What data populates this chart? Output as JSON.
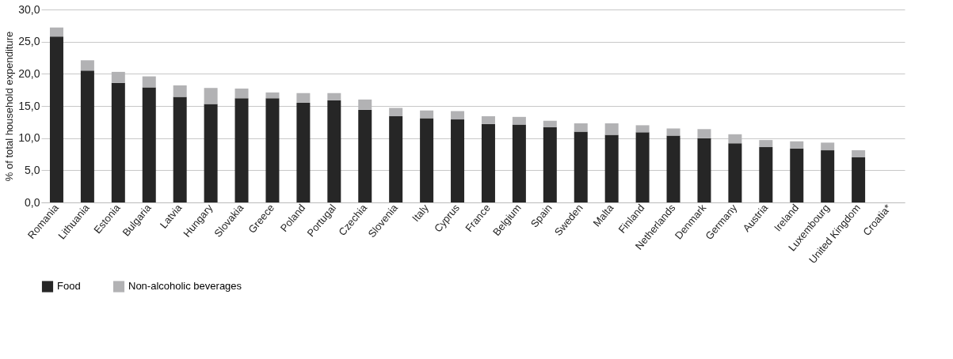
{
  "chart_data": {
    "type": "bar",
    "stacked": true,
    "ylabel": "% of total household expenditure",
    "categories": [
      "Romania",
      "Lithuania",
      "Estonia",
      "Bulgaria",
      "Latvia",
      "Hungary",
      "Slovakia",
      "Greece",
      "Poland",
      "Portugal",
      "Czechia",
      "Slovenia",
      "Italy",
      "Cyprus",
      "France",
      "Belgium",
      "Spain",
      "Sweden",
      "Malta",
      "Finland",
      "Netherlands",
      "Denmark",
      "Germany",
      "Austria",
      "Ireland",
      "Luxembourg",
      "United Kingdom",
      "Croatia*"
    ],
    "series": [
      {
        "name": "Food",
        "color": "#262626",
        "values": [
          25.8,
          20.5,
          18.6,
          17.9,
          16.4,
          15.3,
          16.2,
          16.2,
          15.5,
          15.9,
          14.4,
          13.4,
          13.1,
          12.9,
          12.2,
          12.1,
          11.7,
          11.0,
          10.5,
          10.9,
          10.4,
          10.0,
          9.2,
          8.6,
          8.4,
          8.1,
          7.0,
          null
        ]
      },
      {
        "name": "Non-alcoholic beverages",
        "color": "#b2b2b4",
        "values": [
          1.4,
          1.6,
          1.7,
          1.7,
          1.8,
          2.5,
          1.5,
          0.9,
          1.5,
          1.1,
          1.6,
          1.3,
          1.2,
          1.3,
          1.2,
          1.2,
          1.0,
          1.3,
          1.8,
          1.1,
          1.1,
          1.4,
          1.4,
          1.1,
          1.1,
          1.2,
          1.1,
          null
        ]
      }
    ],
    "ylim": [
      0,
      30
    ],
    "yticks": [
      {
        "value": 0,
        "label": "0,0"
      },
      {
        "value": 5,
        "label": "5,0"
      },
      {
        "value": 10,
        "label": "10,0"
      },
      {
        "value": 15,
        "label": "15,0"
      },
      {
        "value": 20,
        "label": "20,0"
      },
      {
        "value": 25,
        "label": "25,0"
      },
      {
        "value": 30,
        "label": "30,0"
      }
    ],
    "grid": "y",
    "legend": "bottom"
  }
}
